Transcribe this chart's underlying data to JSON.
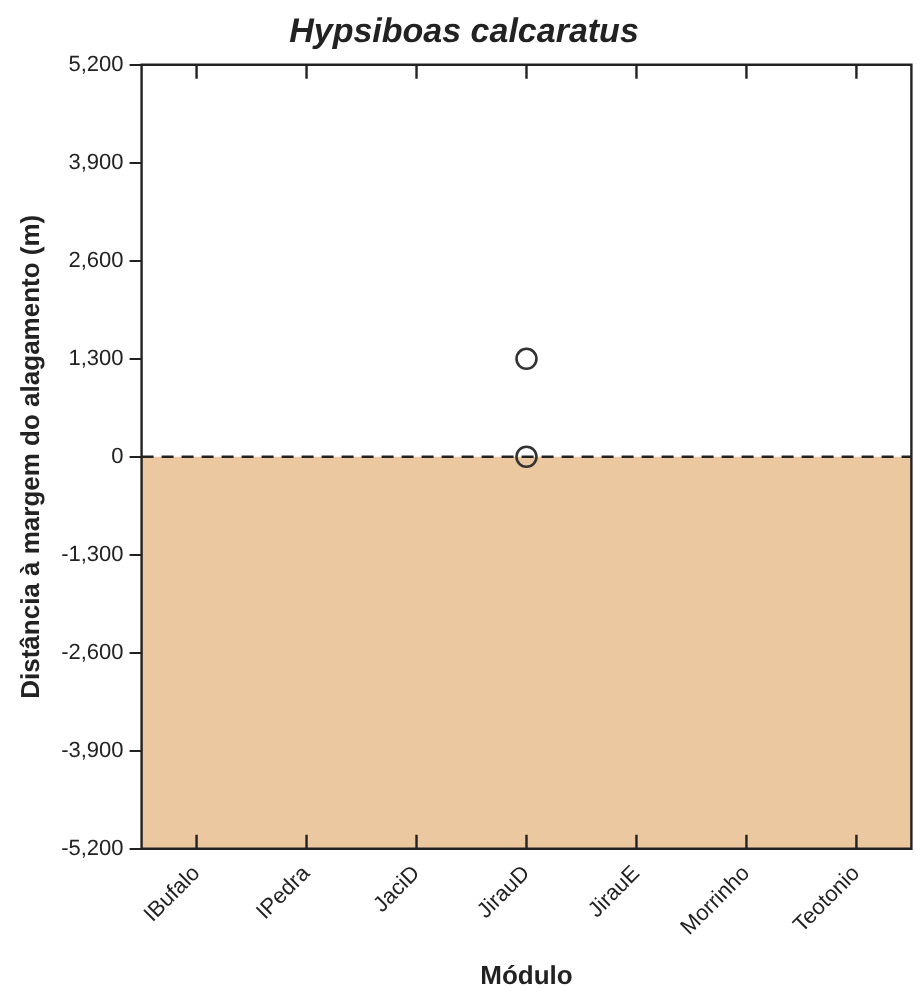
{
  "chart_data": {
    "type": "scatter",
    "title": "Hypsiboas calcaratus",
    "xlabel": "Módulo",
    "ylabel": "Distância à margem do alagamento (m)",
    "categories": [
      "IBufalo",
      "IPedra",
      "JaciD",
      "JirauD",
      "JirauE",
      "Morrinho",
      "Teotonio"
    ],
    "series": [
      {
        "x": [
          "JirauD",
          "JirauD"
        ],
        "values": [
          1300,
          0
        ],
        "color": "#333333"
      }
    ],
    "ylim": [
      -5200,
      5200
    ],
    "yticks": [
      {
        "value": -5200,
        "label": "-5,200"
      },
      {
        "value": -3900,
        "label": "-3,900"
      },
      {
        "value": -2600,
        "label": "-2,600"
      },
      {
        "value": -1300,
        "label": "-1,300"
      },
      0,
      {
        "value": 1300,
        "label": "1,300"
      },
      {
        "value": 2600,
        "label": "2,600"
      },
      {
        "value": 3900,
        "label": "3,900"
      },
      {
        "value": 5200,
        "label": "5,200"
      }
    ],
    "bands": [
      {
        "axis": "y",
        "from": -5200,
        "to": 0,
        "color": "#ecc8a0"
      }
    ],
    "ref_lines": [
      {
        "axis": "y",
        "value": 0,
        "color": "#222222",
        "line_style": "dashed"
      }
    ],
    "marker": "circle",
    "grid": false,
    "legend": false
  }
}
